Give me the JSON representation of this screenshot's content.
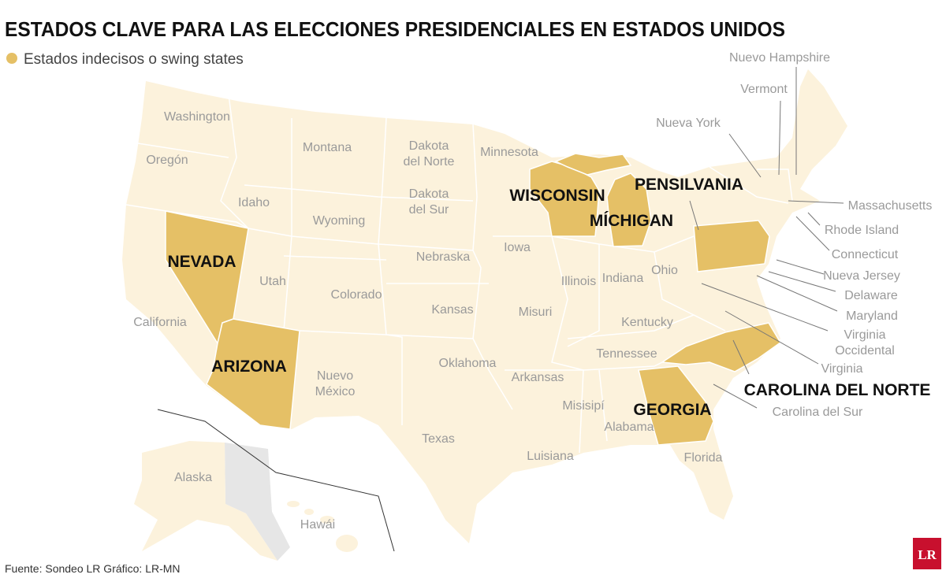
{
  "title": "ESTADOS CLAVE PARA LAS ELECCIONES PRESIDENCIALES EN ESTADOS UNIDOS",
  "legend": "Estados indecisos o swing states",
  "states": [
    [
      "Washington"
    ],
    [
      "Oregón"
    ],
    [
      "California"
    ],
    [
      "Idaho"
    ],
    [
      "Montana"
    ],
    [
      "Wyoming"
    ],
    [
      "Utah"
    ],
    [
      "Colorado"
    ],
    [
      "Nuevo",
      "México"
    ],
    [
      "Dakota",
      "del Norte"
    ],
    [
      "Dakota",
      "del Sur"
    ],
    [
      "Nebraska"
    ],
    [
      "Kansas"
    ],
    [
      "Oklahoma"
    ],
    [
      "Texas"
    ],
    [
      "Minnesota"
    ],
    [
      "Iowa"
    ],
    [
      "Misuri"
    ],
    [
      "Arkansas"
    ],
    [
      "Luisiana"
    ],
    [
      "Misisipí"
    ],
    [
      "Illinois"
    ],
    [
      "Indiana"
    ],
    [
      "Ohio"
    ],
    [
      "Kentucky"
    ],
    [
      "Tennessee"
    ],
    [
      "Alabama"
    ],
    [
      "Florida"
    ],
    [
      "Nueva York"
    ],
    [
      "Vermont"
    ],
    [
      "Nuevo Hampshire"
    ],
    [
      "Massachusetts"
    ],
    [
      "Rhode Island"
    ],
    [
      "Connecticut"
    ],
    [
      "Nueva Jersey"
    ],
    [
      "Delaware"
    ],
    [
      "Maryland"
    ],
    [
      "Virginia",
      "Occidental"
    ],
    [
      "Virginia"
    ],
    [
      "Carolina del Sur"
    ],
    [
      "Alaska"
    ],
    [
      "Hawái"
    ]
  ],
  "swing_states": [
    "NEVADA",
    "ARIZONA",
    "WISCONSIN",
    "MÍCHIGAN",
    "PENSILVANIA",
    "GEORGIA",
    "CAROLINA DEL NORTE"
  ],
  "source": "Fuente: Sondeo LR  Gráfico: LR-MN",
  "logo": "LR"
}
